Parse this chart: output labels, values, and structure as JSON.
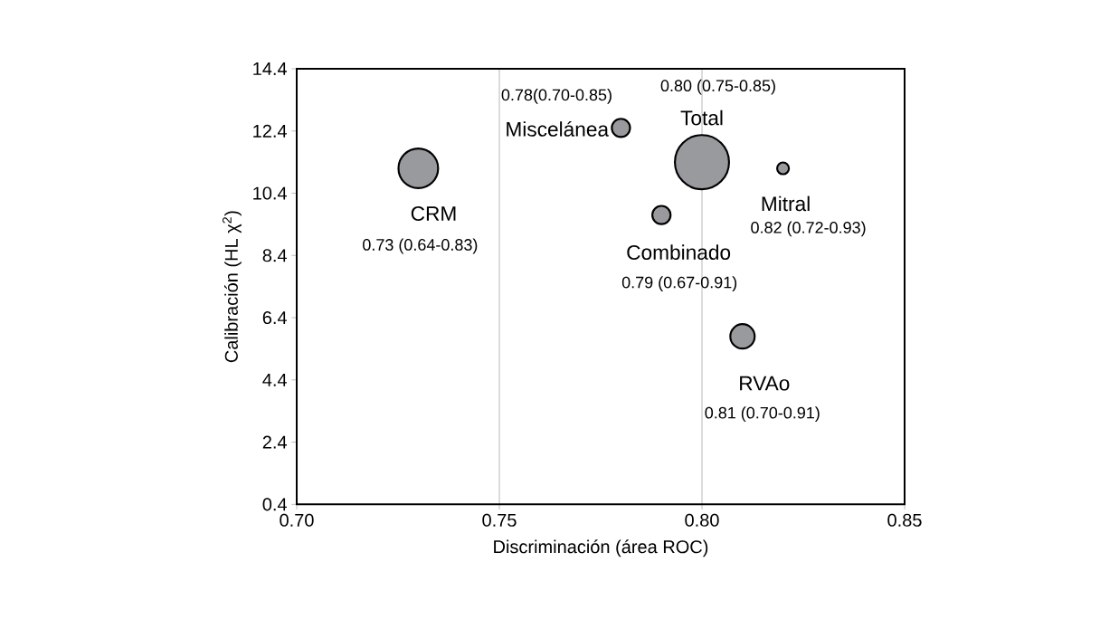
{
  "chart_data": {
    "type": "bubble",
    "xlabel": "Discriminación (área ROC)",
    "ylabel": "Calibración (HL χ$^{2}$)",
    "xlim": [
      0.7,
      0.85
    ],
    "xticks": [
      {
        "value": 0.7,
        "label": "0.70"
      },
      {
        "value": 0.75,
        "label": "0.75"
      },
      {
        "value": 0.8,
        "label": "0.80"
      },
      {
        "value": 0.85,
        "label": "0.85"
      }
    ],
    "ylim": [
      0.4,
      14.4
    ],
    "yticks": [
      0.4,
      2.4,
      4.4,
      6.4,
      8.4,
      10.4,
      12.4,
      14.4
    ],
    "grid": "x",
    "series": [
      {
        "name": "CRM",
        "color": "#999a9e",
        "x": [
          0.73
        ],
        "values": [
          11.2
        ],
        "sizes": [
          0.55
        ]
      },
      {
        "name": "Miscelánea",
        "color": "#999a9e",
        "x": [
          0.78
        ],
        "values": [
          12.5
        ],
        "sizes": [
          0.13
        ]
      },
      {
        "name": "Total",
        "color": "#999a9e",
        "x": [
          0.8
        ],
        "values": [
          11.4
        ],
        "sizes": [
          1
        ]
      },
      {
        "name": "Mitral",
        "color": "#999a9e",
        "x": [
          0.82
        ],
        "values": [
          11.2
        ],
        "sizes": [
          0.06
        ]
      },
      {
        "name": "Combinado",
        "color": "#999a9e",
        "x": [
          0.79
        ],
        "values": [
          9.7
        ],
        "sizes": [
          0.13
        ]
      },
      {
        "name": "RVAo",
        "color": "#999a9e",
        "x": [
          0.81
        ],
        "values": [
          5.8
        ],
        "sizes": [
          0.22
        ]
      }
    ],
    "annotations": [
      "0.73 (0.64-0.83)",
      "0.78(0.70-0.85)",
      "0.80 (0.75-0.85)",
      "0.82 (0.72-0.93)",
      "0.79 (0.67-0.91)",
      "0.81 (0.70-0.91)"
    ]
  }
}
